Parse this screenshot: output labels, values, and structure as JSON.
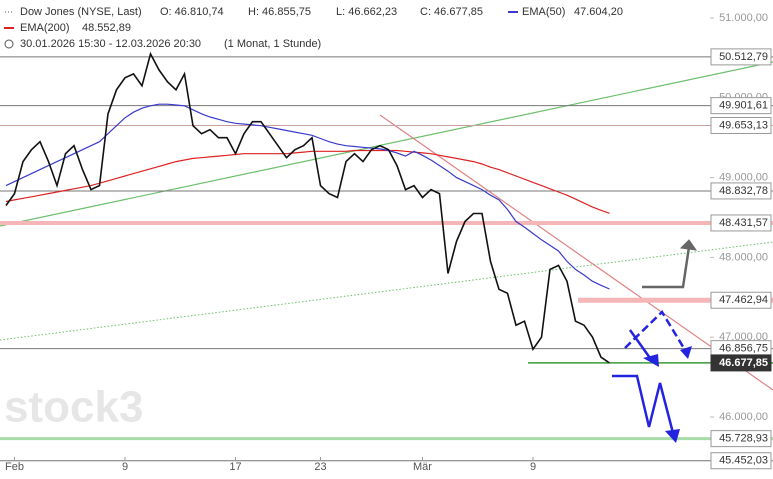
{
  "chart_data": {
    "type": "line",
    "header": {
      "icon": "···",
      "instrument": "Dow Jones (NYSE, Last)",
      "open": "O: 46.810,74",
      "high": "H: 46.855,75",
      "low": "L: 46.662,23",
      "close": "C: 46.677,85",
      "period": "30.01.2026 15:30 - 12.03.2026 20:30",
      "resolution": "(1 Monat, 1 Stunde)"
    },
    "watermark": "stock3",
    "categories": [
      null,
      "Feb",
      null,
      null,
      null,
      null,
      null,
      null,
      null,
      null,
      null,
      null,
      null,
      null,
      "9",
      null,
      null,
      null,
      null,
      null,
      null,
      null,
      null,
      null,
      null,
      null,
      null,
      "17",
      null,
      null,
      null,
      null,
      null,
      null,
      null,
      null,
      null,
      "23",
      null,
      null,
      null,
      null,
      null,
      null,
      null,
      null,
      null,
      null,
      null,
      "Mär",
      null,
      null,
      null,
      null,
      null,
      null,
      null,
      null,
      null,
      null,
      null,
      null,
      "9",
      null,
      null,
      null,
      null,
      null,
      null,
      null,
      null,
      null
    ],
    "series": [
      {
        "name": "Dow Jones",
        "color": "#111111",
        "values": [
          48650,
          48800,
          49200,
          49350,
          49450,
          49200,
          48900,
          49300,
          49400,
          49100,
          48850,
          48900,
          49800,
          50100,
          50250,
          50300,
          50150,
          50550,
          50350,
          50200,
          50100,
          50300,
          49650,
          49550,
          49600,
          49500,
          49500,
          49300,
          49550,
          49700,
          49700,
          49550,
          49400,
          49250,
          49350,
          49400,
          49500,
          48900,
          48800,
          48750,
          49200,
          49300,
          49200,
          49350,
          49400,
          49350,
          49150,
          48850,
          48900,
          48750,
          48850,
          48800,
          47800,
          48200,
          48450,
          48550,
          48550,
          47950,
          47600,
          47550,
          47150,
          47200,
          46850,
          47000,
          47850,
          47900,
          47700,
          47200,
          47150,
          47000,
          46750,
          46677.85
        ]
      },
      {
        "name": "EMA(50)",
        "value_label": "47.604,20",
        "color": "#3a3acc",
        "values": [
          48900,
          48950,
          49000,
          49050,
          49100,
          49150,
          49200,
          49250,
          49300,
          49350,
          49400,
          49450,
          49550,
          49650,
          49750,
          49820,
          49870,
          49900,
          49920,
          49920,
          49910,
          49900,
          49850,
          49800,
          49760,
          49730,
          49700,
          49680,
          49670,
          49660,
          49650,
          49630,
          49610,
          49590,
          49570,
          49550,
          49530,
          49490,
          49450,
          49420,
          49400,
          49390,
          49380,
          49370,
          49360,
          49340,
          49310,
          49270,
          49330,
          49280,
          49220,
          49150,
          49080,
          49000,
          48950,
          48900,
          48850,
          48780,
          48720,
          48600,
          48450,
          48380,
          48300,
          48220,
          48150,
          48080,
          47950,
          47850,
          47780,
          47700,
          47650,
          47604.2
        ]
      },
      {
        "name": "EMA(200)",
        "value_label": "48.552,89",
        "color": "#dd2222",
        "values": [
          48700,
          48720,
          48740,
          48760,
          48780,
          48800,
          48820,
          48840,
          48860,
          48880,
          48900,
          48930,
          48960,
          48990,
          49020,
          49050,
          49080,
          49110,
          49140,
          49170,
          49200,
          49220,
          49240,
          49250,
          49260,
          49270,
          49280,
          49290,
          49300,
          49300,
          49300,
          49300,
          49300,
          49300,
          49310,
          49320,
          49330,
          49330,
          49330,
          49330,
          49330,
          49340,
          49340,
          49340,
          49340,
          49340,
          49340,
          49330,
          49320,
          49310,
          49300,
          49280,
          49260,
          49240,
          49220,
          49200,
          49170,
          49130,
          49100,
          49060,
          49020,
          48980,
          48940,
          48900,
          48860,
          48820,
          48780,
          48730,
          48680,
          48630,
          48590,
          48552.89
        ]
      }
    ],
    "ylim": [
      45200,
      51400
    ],
    "yticks": [
      {
        "value": 51000,
        "label": "51.000,00"
      },
      {
        "value": 50000,
        "label": "50.000,00"
      },
      {
        "value": 49000,
        "label": "49.000,00"
      },
      {
        "value": 48000,
        "label": "48.000,00"
      },
      {
        "value": 47000,
        "label": "47.000,00"
      },
      {
        "value": 46000,
        "label": "46.000,00"
      }
    ],
    "levels": [
      {
        "value": 50512.79,
        "label": "50.512,79",
        "color": "#777777"
      },
      {
        "value": 49901.61,
        "label": "49.901,61",
        "color": "#777777"
      },
      {
        "value": 49653.13,
        "label": "49.653,13",
        "color": "#c9a0a0"
      },
      {
        "value": 48832.78,
        "label": "48.832,78",
        "color": "#777777"
      },
      {
        "value": 48431.57,
        "label": "48.431,57",
        "color": "#f4b6b6"
      },
      {
        "value": 47462.94,
        "label": "47.462,94",
        "color": "#f4b6b6"
      },
      {
        "value": 46856.75,
        "label": "46.856,75",
        "color": "#777777"
      },
      {
        "value": 46677.85,
        "label": "46.677,85",
        "color": "#3a9a3a"
      },
      {
        "value": 45728.93,
        "label": "45.728,93",
        "color": "#a6dca6"
      },
      {
        "value": 45452.03,
        "label": "45.452,03",
        "color": "#777777"
      }
    ]
  }
}
